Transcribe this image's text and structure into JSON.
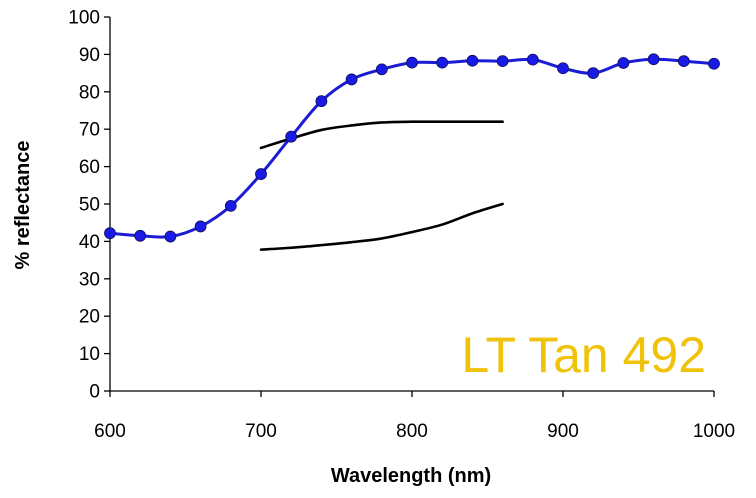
{
  "chart_data": {
    "type": "line",
    "title": "",
    "xlabel": "Wavelength (nm)",
    "ylabel": "% reflectance",
    "xlim": [
      600,
      1000
    ],
    "ylim": [
      0,
      100
    ],
    "x_ticks": [
      600,
      700,
      800,
      900,
      1000
    ],
    "y_ticks": [
      0,
      10,
      20,
      30,
      40,
      50,
      60,
      70,
      80,
      90,
      100
    ],
    "grid": false,
    "legend": "none",
    "annotation": {
      "text": "LT Tan 492",
      "color": "#F0C20A",
      "position": "bottom-right"
    },
    "series": [
      {
        "color": "#1C1CD6",
        "marker_color": "#1A1AE6",
        "markers": true,
        "smooth": true,
        "x": [
          600,
          620,
          640,
          660,
          680,
          700,
          720,
          740,
          760,
          780,
          800,
          820,
          840,
          860,
          880,
          900,
          920,
          940,
          960,
          980,
          1000
        ],
        "y": [
          42.2,
          41.5,
          41.3,
          44.0,
          49.5,
          58.0,
          68.0,
          77.5,
          83.3,
          86.0,
          87.8,
          87.8,
          88.3,
          88.2,
          88.6,
          86.3,
          85.0,
          87.7,
          88.7,
          88.2,
          87.5
        ]
      },
      {
        "color": "#000000",
        "markers": false,
        "smooth": true,
        "x": [
          700,
          720,
          740,
          760,
          780,
          800,
          820,
          840,
          860
        ],
        "y": [
          65.0,
          67.5,
          69.8,
          71.0,
          71.8,
          72.0,
          72.0,
          72.0,
          72.0
        ]
      },
      {
        "color": "#000000",
        "markers": false,
        "smooth": true,
        "x": [
          700,
          720,
          740,
          760,
          780,
          800,
          820,
          840,
          860
        ],
        "y": [
          37.8,
          38.3,
          39.0,
          39.8,
          40.8,
          42.5,
          44.5,
          47.5,
          50.0
        ]
      }
    ]
  }
}
